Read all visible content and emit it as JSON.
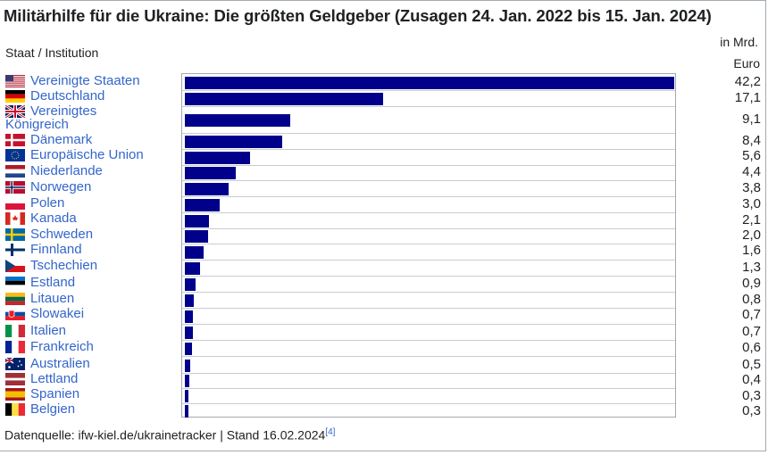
{
  "title": "Militärhilfe für die Ukraine: Die größten Geldgeber (Zusagen 24. Jan. 2022 bis 15. Jan. 2024)",
  "column_header": "Staat / Institution",
  "unit_line1": "in Mrd.",
  "unit_line2": "Euro",
  "source_text": "Datenquelle: ifw-kiel.de/ukrainetracker | Stand 16.02.2024",
  "source_ref": "[4]",
  "colors": {
    "bar": "#00008b",
    "link": "#3366cc",
    "border": "#a2a9b1"
  },
  "chart_data": {
    "type": "bar",
    "orientation": "horizontal",
    "categories": [
      "Vereinigte Staaten",
      "Deutschland",
      "Vereinigtes Königreich",
      "Dänemark",
      "Europäische Union",
      "Niederlande",
      "Norwegen",
      "Polen",
      "Kanada",
      "Schweden",
      "Finnland",
      "Tschechien",
      "Estland",
      "Litauen",
      "Slowakei",
      "Italien",
      "Frankreich",
      "Australien",
      "Lettland",
      "Spanien",
      "Belgien"
    ],
    "values": [
      42.2,
      17.1,
      9.1,
      8.4,
      5.6,
      4.4,
      3.8,
      3.0,
      2.1,
      2.0,
      1.6,
      1.3,
      0.9,
      0.8,
      0.7,
      0.7,
      0.6,
      0.5,
      0.4,
      0.3,
      0.3
    ],
    "value_labels": [
      "42,2",
      "17,1",
      "9,1",
      "8,4",
      "5,6",
      "4,4",
      "3,8",
      "3,0",
      "2,1",
      "2,0",
      "1,6",
      "1,3",
      "0,9",
      "0,8",
      "0,7",
      "0,7",
      "0,6",
      "0,5",
      "0,4",
      "0,3",
      "0,3"
    ],
    "flags": [
      "us-flag-icon",
      "de-flag-icon",
      "gb-flag-icon",
      "dk-flag-icon",
      "eu-flag-icon",
      "nl-flag-icon",
      "no-flag-icon",
      "pl-flag-icon",
      "ca-flag-icon",
      "se-flag-icon",
      "fi-flag-icon",
      "cz-flag-icon",
      "ee-flag-icon",
      "lt-flag-icon",
      "sk-flag-icon",
      "it-flag-icon",
      "fr-flag-icon",
      "au-flag-icon",
      "lv-flag-icon",
      "es-flag-icon",
      "be-flag-icon"
    ],
    "xlim": [
      0,
      42.2
    ],
    "xlabel": "",
    "ylabel": "Staat / Institution",
    "grid": false,
    "legend": "none"
  }
}
